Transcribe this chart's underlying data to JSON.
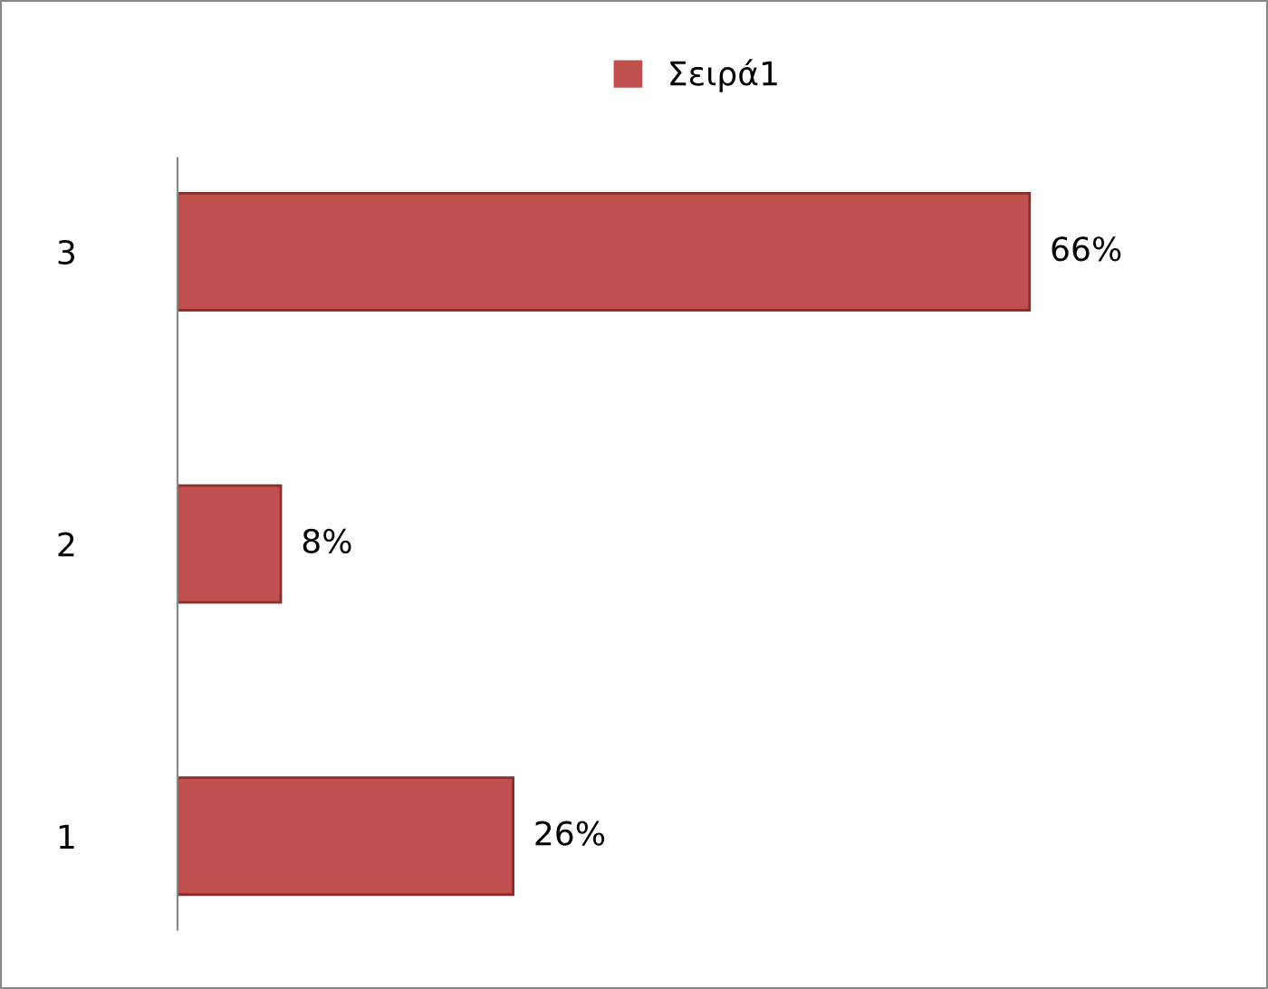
{
  "chart_data": {
    "type": "bar",
    "orientation": "horizontal",
    "categories": [
      "3",
      "2",
      "1"
    ],
    "series": [
      {
        "name": "Σειρά1",
        "color": "#c0504d",
        "values": [
          66,
          8,
          26
        ],
        "value_labels": [
          "66%",
          "8%",
          "26%"
        ]
      }
    ],
    "legend": "top",
    "grid": false
  }
}
